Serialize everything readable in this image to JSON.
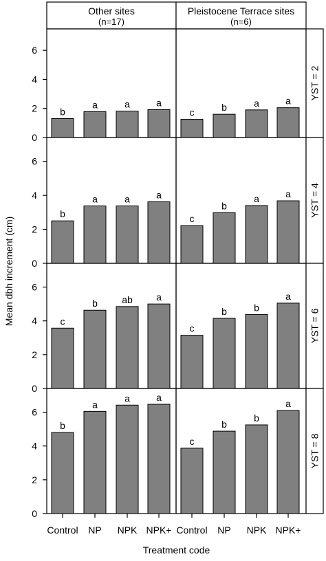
{
  "chart_data": {
    "type": "bar",
    "xlabel": "Treatment code",
    "ylabel": "Mean dbh increment (cm)",
    "categories": [
      "Control",
      "NP",
      "NPK",
      "NPK+"
    ],
    "ylim": [
      0,
      7
    ],
    "yticks": [
      0,
      2,
      4,
      6
    ],
    "columns": [
      {
        "title": "Other sites",
        "subtitle": "(n=17)"
      },
      {
        "title": "Pleistocene Terrace sites",
        "subtitle": "(n=6)"
      }
    ],
    "rows": [
      {
        "label": "YST = 2"
      },
      {
        "label": "YST = 4"
      },
      {
        "label": "YST = 6"
      },
      {
        "label": "YST = 8"
      }
    ],
    "bar_color": "#808080",
    "panels": [
      {
        "row": 0,
        "col": 0,
        "values": [
          1.3,
          1.78,
          1.82,
          1.92
        ],
        "letters": [
          "b",
          "a",
          "a",
          "a"
        ]
      },
      {
        "row": 0,
        "col": 1,
        "values": [
          1.25,
          1.6,
          1.9,
          2.05
        ],
        "letters": [
          "c",
          "b",
          "a",
          "a"
        ]
      },
      {
        "row": 1,
        "col": 0,
        "values": [
          2.5,
          3.38,
          3.38,
          3.62
        ],
        "letters": [
          "b",
          "a",
          "a",
          "a"
        ]
      },
      {
        "row": 1,
        "col": 1,
        "values": [
          2.22,
          2.98,
          3.4,
          3.68
        ],
        "letters": [
          "c",
          "b",
          "a",
          "a"
        ]
      },
      {
        "row": 2,
        "col": 0,
        "values": [
          3.57,
          4.63,
          4.85,
          5.0
        ],
        "letters": [
          "c",
          "b",
          "ab",
          "a"
        ]
      },
      {
        "row": 2,
        "col": 1,
        "values": [
          3.15,
          4.15,
          4.38,
          5.05
        ],
        "letters": [
          "c",
          "b",
          "b",
          "a"
        ]
      },
      {
        "row": 3,
        "col": 0,
        "values": [
          4.8,
          6.05,
          6.42,
          6.47
        ],
        "letters": [
          "b",
          "a",
          "a",
          "a"
        ]
      },
      {
        "row": 3,
        "col": 1,
        "values": [
          3.87,
          4.88,
          5.25,
          6.1
        ],
        "letters": [
          "c",
          "b",
          "b",
          "a"
        ]
      }
    ]
  }
}
